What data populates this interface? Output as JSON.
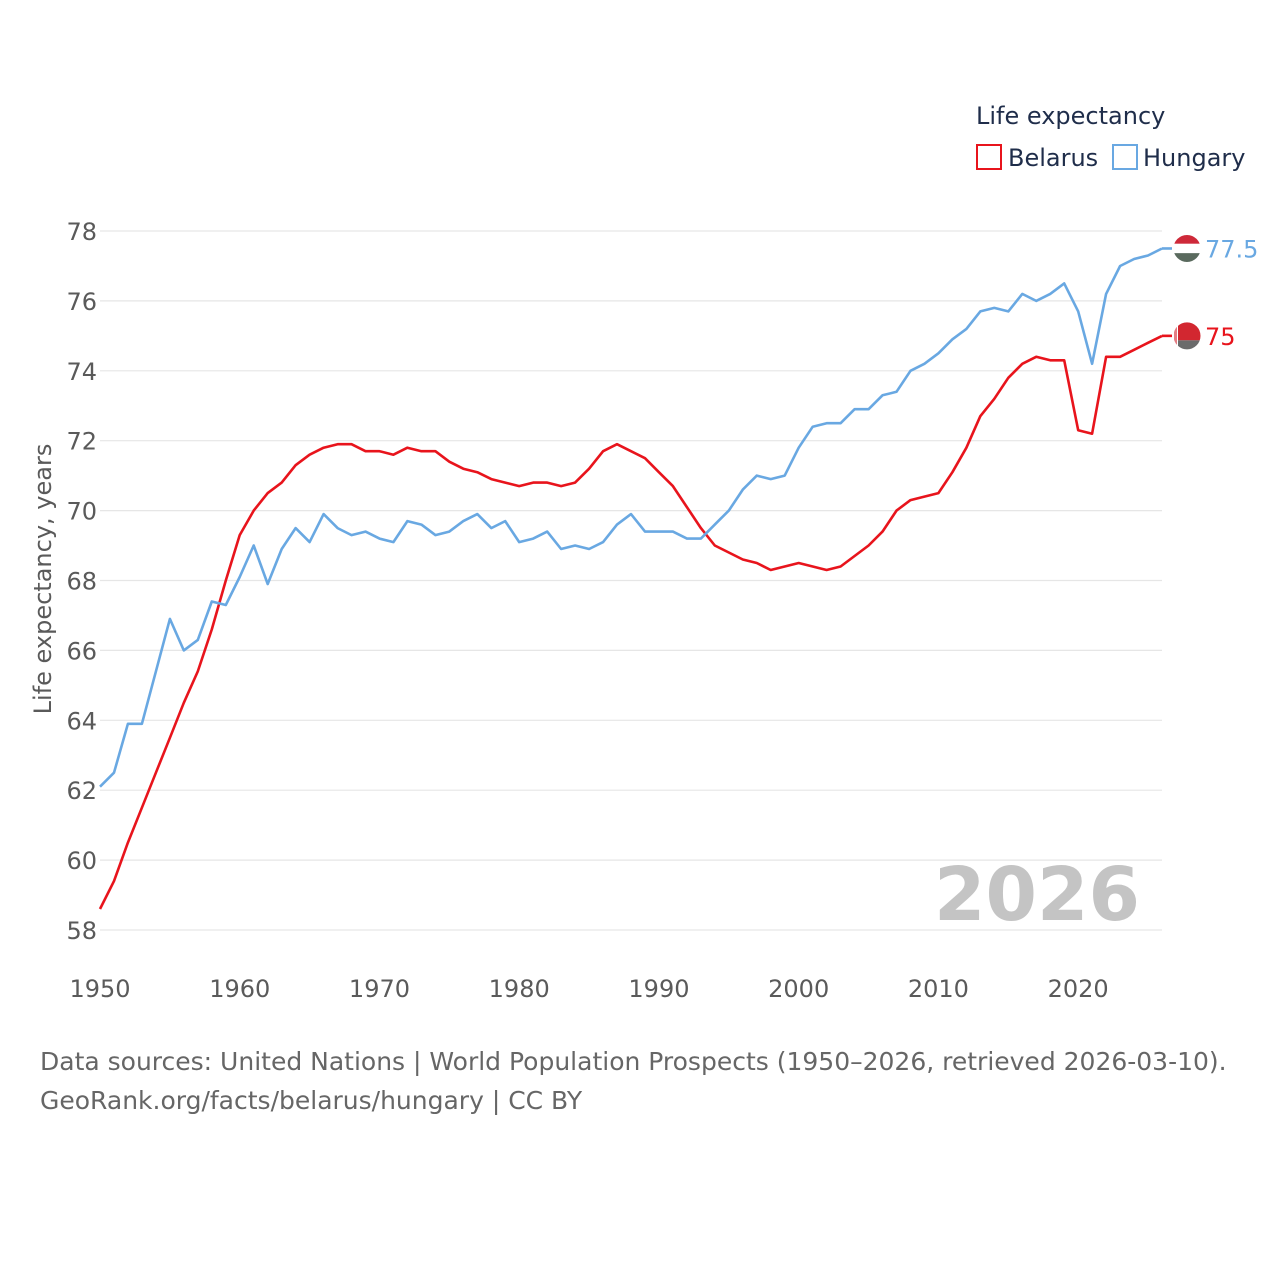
{
  "chart_data": {
    "type": "line",
    "legend_title": "Life expectancy",
    "ylabel": "Life expectancy, years",
    "xlabel": "",
    "year_label": "2026",
    "x_range": [
      1950,
      2026
    ],
    "ylim": [
      58,
      78
    ],
    "x_ticks": [
      1950,
      1960,
      1970,
      1980,
      1990,
      2000,
      2010,
      2020
    ],
    "y_ticks": [
      58,
      60,
      62,
      64,
      66,
      68,
      70,
      72,
      74,
      76,
      78
    ],
    "legend_position": "top-right",
    "series": [
      {
        "name": "Belarus",
        "color": "#e8141c",
        "end_label": "75",
        "x_start": 1950,
        "values": [
          58.6,
          59.4,
          60.5,
          61.5,
          62.5,
          63.5,
          64.5,
          65.4,
          66.6,
          68.0,
          69.3,
          70.0,
          70.5,
          70.8,
          71.3,
          71.6,
          71.8,
          71.9,
          71.9,
          71.7,
          71.7,
          71.6,
          71.8,
          71.7,
          71.7,
          71.4,
          71.2,
          71.1,
          70.9,
          70.8,
          70.7,
          70.8,
          70.8,
          70.7,
          70.8,
          71.2,
          71.7,
          71.9,
          71.7,
          71.5,
          71.1,
          70.7,
          70.1,
          69.5,
          69.0,
          68.8,
          68.6,
          68.5,
          68.3,
          68.4,
          68.5,
          68.4,
          68.3,
          68.4,
          68.7,
          69.0,
          69.4,
          70.0,
          70.3,
          70.4,
          70.5,
          71.1,
          71.8,
          72.7,
          73.2,
          73.8,
          74.2,
          74.4,
          74.3,
          74.3,
          72.3,
          72.2,
          74.4,
          74.4,
          74.6,
          74.8,
          75.0
        ]
      },
      {
        "name": "Hungary",
        "color": "#69a8e2",
        "end_label": "77.5",
        "x_start": 1950,
        "values": [
          62.1,
          62.5,
          63.9,
          63.9,
          65.4,
          66.9,
          66.0,
          66.3,
          67.4,
          67.3,
          68.1,
          69.0,
          67.9,
          68.9,
          69.5,
          69.1,
          69.9,
          69.5,
          69.3,
          69.4,
          69.2,
          69.1,
          69.7,
          69.6,
          69.3,
          69.4,
          69.7,
          69.9,
          69.5,
          69.7,
          69.1,
          69.2,
          69.4,
          68.9,
          69.0,
          68.9,
          69.1,
          69.6,
          69.9,
          69.4,
          69.4,
          69.4,
          69.2,
          69.2,
          69.6,
          70.0,
          70.6,
          71.0,
          70.9,
          71.0,
          71.8,
          72.4,
          72.5,
          72.5,
          72.9,
          72.9,
          73.3,
          73.4,
          74.0,
          74.2,
          74.5,
          74.9,
          75.2,
          75.7,
          75.8,
          75.7,
          76.2,
          76.0,
          76.2,
          76.5,
          75.7,
          74.2,
          76.2,
          77.0,
          77.2,
          77.3,
          77.5
        ]
      }
    ]
  },
  "footer": {
    "line1": "Data sources: United Nations | World Population Prospects (1950–2026, retrieved 2026-03-10).",
    "line2": "GeoRank.org/facts/belarus/hungary | CC BY"
  },
  "colors": {
    "grid": "#e6e6e6",
    "tick_text": "#5a5a5a",
    "legend_text": "#1f2d4a",
    "year_text": "#c4c4c4",
    "belarus_flag_red": "#d22730",
    "belarus_flag_green": "#4f9a45",
    "hungary_flag_red": "#ce2939",
    "hungary_flag_green": "#477050"
  }
}
